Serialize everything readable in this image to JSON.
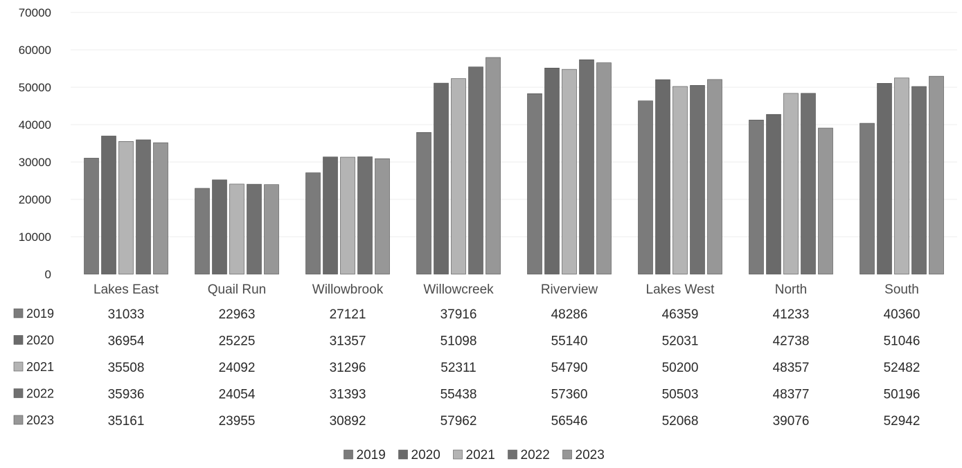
{
  "chart_data": {
    "type": "bar",
    "title": "",
    "xlabel": "",
    "ylabel": "",
    "ylim": [
      0,
      70000
    ],
    "yticks": [
      0,
      10000,
      20000,
      30000,
      40000,
      50000,
      60000,
      70000
    ],
    "grid": true,
    "legend": "bottom-center",
    "data_table": true,
    "categories": [
      "Lakes East",
      "Quail Run",
      "Willowbrook",
      "Willowcreek",
      "Riverview",
      "Lakes West",
      "North",
      "South"
    ],
    "series": [
      {
        "name": "2019",
        "color": "#7b7b7b",
        "values": [
          31033,
          22963,
          27121,
          37916,
          48286,
          46359,
          41233,
          40360
        ]
      },
      {
        "name": "2020",
        "color": "#6a6a6a",
        "values": [
          36954,
          25225,
          31357,
          51098,
          55140,
          52031,
          42738,
          51046
        ]
      },
      {
        "name": "2021",
        "color": "#b4b4b4",
        "values": [
          35508,
          24092,
          31296,
          52311,
          54790,
          50200,
          48357,
          52482
        ]
      },
      {
        "name": "2022",
        "color": "#707070",
        "values": [
          35936,
          24054,
          31393,
          55438,
          57360,
          50503,
          48377,
          50196
        ]
      },
      {
        "name": "2023",
        "color": "#979797",
        "values": [
          35161,
          23955,
          30892,
          57962,
          56546,
          52068,
          39076,
          52942
        ]
      }
    ]
  }
}
